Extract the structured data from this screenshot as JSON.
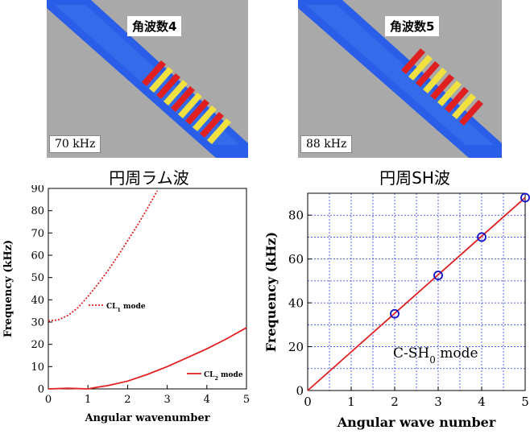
{
  "sim_panels": [
    {
      "label_top": "角波数4",
      "label_bottom": "70 kHz"
    },
    {
      "label_top": "角波数5",
      "label_bottom": "88 kHz"
    }
  ],
  "colors": {
    "sim_background": "#a9a9a9",
    "pipe_blue": "#2a5ee8",
    "curve_red": "#e02020",
    "marker_blue": "#1010cc",
    "grid_blue": "#2a3ee0"
  },
  "chart_data": [
    {
      "type": "line",
      "title": "円周ラム波",
      "xlabel": "Angular wavenumber",
      "ylabel": "Frequency (kHz)",
      "xlim": [
        0,
        5
      ],
      "ylim": [
        0,
        90
      ],
      "xticks": [
        0,
        1,
        2,
        3,
        4,
        5
      ],
      "yticks": [
        0,
        10,
        20,
        30,
        40,
        50,
        60,
        70,
        80,
        90
      ],
      "grid": false,
      "series": [
        {
          "name": "CL1 mode",
          "style": "dotted",
          "x": [
            0,
            0.25,
            0.5,
            0.75,
            1.0,
            1.25,
            1.5,
            1.75,
            2.0,
            2.25,
            2.5,
            2.75
          ],
          "y": [
            30.5,
            31.0,
            33.0,
            36.5,
            41.5,
            47.0,
            53.0,
            59.5,
            66.5,
            73.5,
            81.0,
            89.0
          ]
        },
        {
          "name": "CL2 mode",
          "style": "solid",
          "x": [
            0,
            0.5,
            1.0,
            1.25,
            1.5,
            2.0,
            2.5,
            3.0,
            3.5,
            4.0,
            4.5,
            5.0
          ],
          "y": [
            0,
            0.3,
            0,
            0.8,
            1.5,
            3.5,
            6.5,
            10.0,
            14.0,
            18.0,
            22.5,
            27.5
          ]
        }
      ],
      "legend": [
        {
          "label_main": "CL",
          "label_sub": "1",
          "label_tail": " mode"
        },
        {
          "label_main": "CL",
          "label_sub": "2",
          "label_tail": " mode"
        }
      ]
    },
    {
      "type": "line",
      "title": "円周SH波",
      "xlabel": "Angular wave number",
      "ylabel": "Frequency (kHz)",
      "xlim": [
        0,
        5
      ],
      "ylim": [
        0,
        90
      ],
      "xticks": [
        0,
        1,
        2,
        3,
        4,
        5
      ],
      "yticks": [
        0,
        20,
        40,
        60,
        80
      ],
      "grid": true,
      "series": [
        {
          "name": "C-SH0 mode",
          "style": "solid",
          "x": [
            0,
            5
          ],
          "y": [
            0,
            88
          ]
        },
        {
          "name": "C-SH0 mode",
          "style": "markers",
          "x": [
            2,
            3,
            4,
            5
          ],
          "y": [
            35,
            52.5,
            70,
            88
          ]
        }
      ],
      "annotation": {
        "label_main": "C-SH",
        "label_sub": "0",
        "label_tail": " mode"
      }
    }
  ]
}
